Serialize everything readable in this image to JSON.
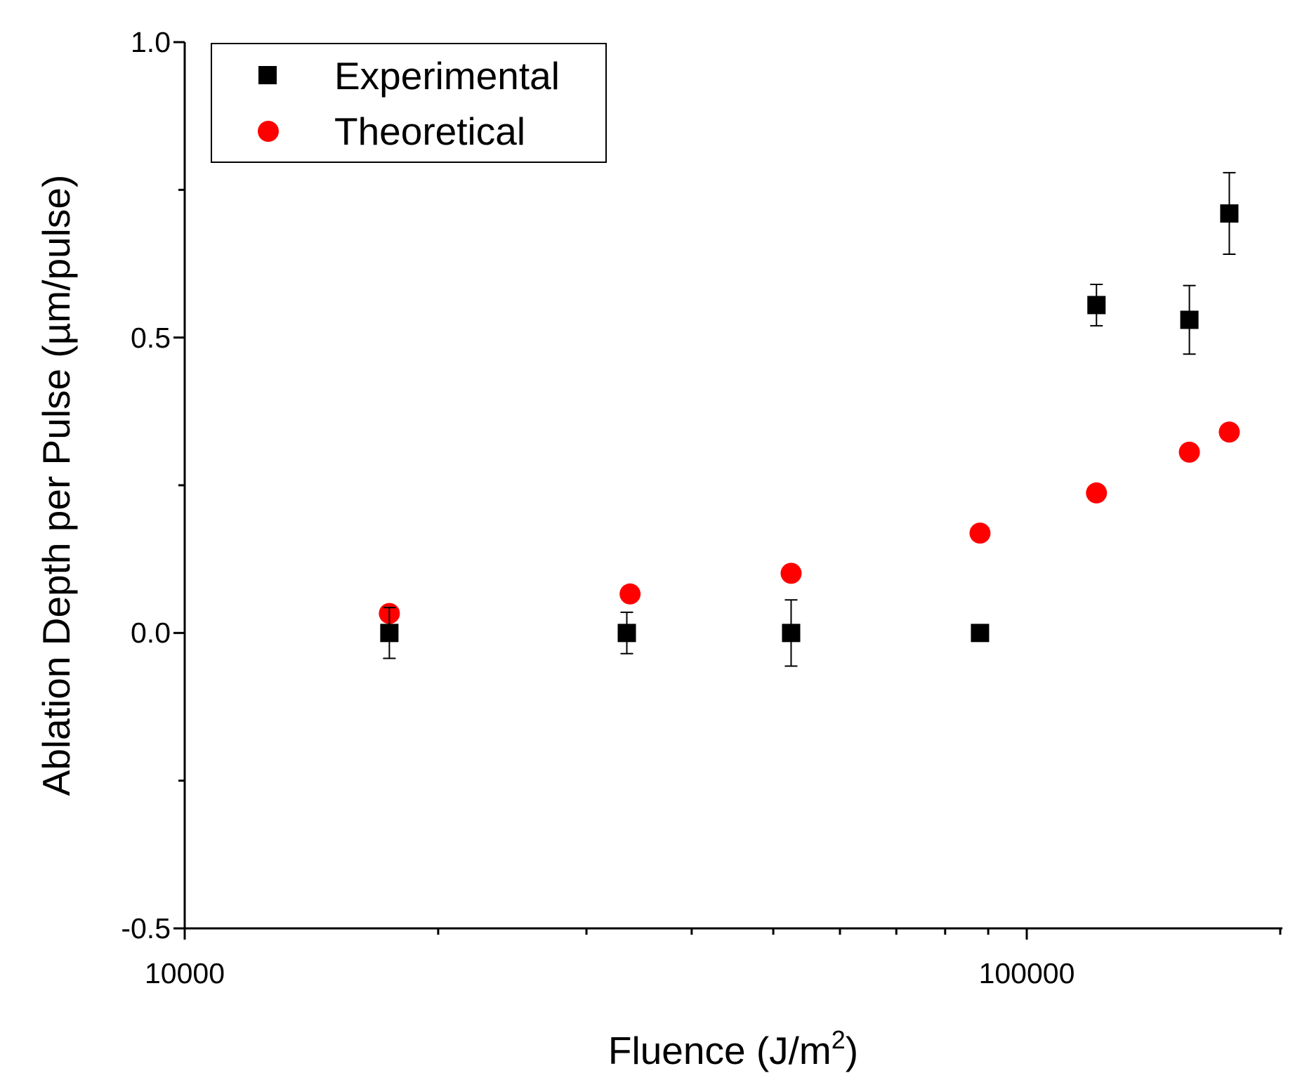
{
  "chart_data": {
    "type": "scatter",
    "title": "",
    "xlabel": "Fluence (J/m",
    "xlabel_superscript": "2",
    "xlabel_suffix": ")",
    "ylabel": "Ablation Depth per Pulse (µm/pulse)",
    "xscale": "log",
    "xlim": [
      10000,
      200000
    ],
    "ylim": [
      -0.5,
      1.0
    ],
    "x_tick_labels": [
      "10000",
      "100000"
    ],
    "y_ticks": [
      -0.5,
      0.0,
      0.5,
      1.0
    ],
    "y_tick_labels": [
      "-0.5",
      "0.0",
      "0.5",
      "1.0"
    ],
    "legend_position": "top-left",
    "grid": false,
    "series": [
      {
        "name": "Experimental",
        "marker": "square",
        "color": "#000000",
        "points": [
          {
            "x": 17500,
            "y": 0.0,
            "err": 0.043
          },
          {
            "x": 33500,
            "y": 0.0,
            "err": 0.035
          },
          {
            "x": 52500,
            "y": 0.0,
            "err": 0.056
          },
          {
            "x": 88000,
            "y": 0.0,
            "err": 0.0
          },
          {
            "x": 121000,
            "y": 0.555,
            "err": 0.035
          },
          {
            "x": 156000,
            "y": 0.53,
            "err": 0.058
          },
          {
            "x": 174000,
            "y": 0.71,
            "err": 0.069
          }
        ]
      },
      {
        "name": "Theoretical",
        "marker": "circle",
        "color": "#ff0000",
        "points": [
          {
            "x": 17500,
            "y": 0.033
          },
          {
            "x": 33800,
            "y": 0.066
          },
          {
            "x": 52500,
            "y": 0.101
          },
          {
            "x": 88000,
            "y": 0.169
          },
          {
            "x": 121000,
            "y": 0.237
          },
          {
            "x": 156000,
            "y": 0.306
          },
          {
            "x": 174000,
            "y": 0.34
          }
        ]
      }
    ]
  }
}
